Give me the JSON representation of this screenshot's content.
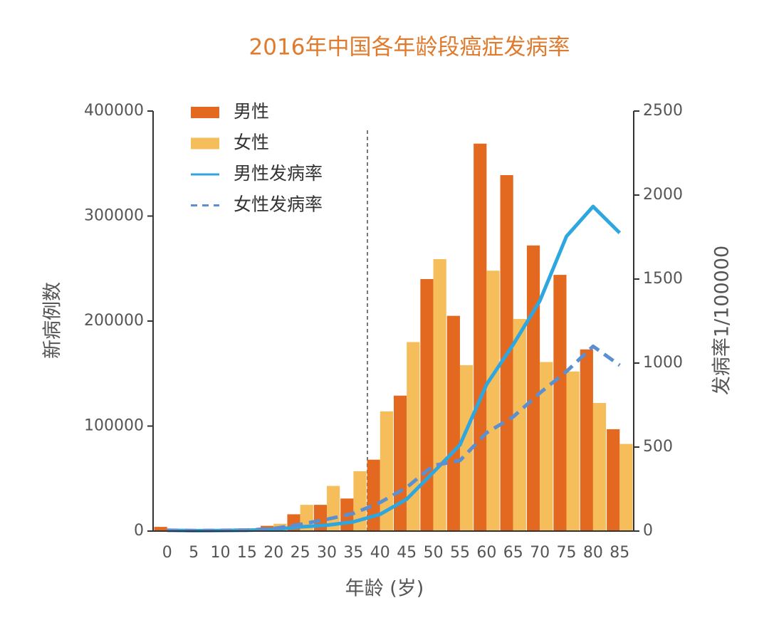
{
  "chart_data": {
    "type": "bar",
    "title": "2016年中国各年龄段癌症发病率",
    "x_label": "年龄 (岁)",
    "y_label": "新病例数",
    "y2_label": "发病率1/100000",
    "categories": [
      "0",
      "5",
      "10",
      "15",
      "20",
      "25",
      "30",
      "35",
      "40",
      "45",
      "50",
      "55",
      "60",
      "65",
      "70",
      "75",
      "80",
      "85"
    ],
    "ylim": [
      0,
      400000
    ],
    "yticks": [
      0,
      100000,
      200000,
      300000,
      400000
    ],
    "y2lim": [
      0,
      2500
    ],
    "y2ticks": [
      0,
      500,
      1000,
      1500,
      2000,
      2500
    ],
    "series": [
      {
        "name": "男性",
        "type": "bar",
        "color": "#e2691f",
        "values": [
          4000,
          1000,
          1500,
          2500,
          5000,
          16000,
          25000,
          31000,
          68000,
          129000,
          240000,
          205000,
          369000,
          339000,
          272000,
          244000,
          173000,
          97000
        ]
      },
      {
        "name": "女性",
        "type": "bar",
        "color": "#f6be5b",
        "values": [
          1000,
          1000,
          1500,
          2500,
          7000,
          25000,
          43000,
          57000,
          114000,
          180000,
          259000,
          158000,
          248000,
          202000,
          161000,
          152000,
          122000,
          83000
        ]
      },
      {
        "name": "男性发病率",
        "type": "line",
        "axis": "y2",
        "color": "#2ea6df",
        "values": [
          5,
          2,
          3,
          5,
          10,
          25,
          35,
          55,
          100,
          190,
          350,
          513,
          873,
          1110,
          1370,
          1754,
          1932,
          1775
        ]
      },
      {
        "name": "女性发病率",
        "type": "line",
        "axis": "y2",
        "dashed": true,
        "color": "#5b8fd1",
        "values": [
          5,
          3,
          4,
          6,
          15,
          40,
          70,
          105,
          170,
          260,
          390,
          420,
          585,
          680,
          822,
          950,
          1100,
          987
        ]
      }
    ]
  }
}
